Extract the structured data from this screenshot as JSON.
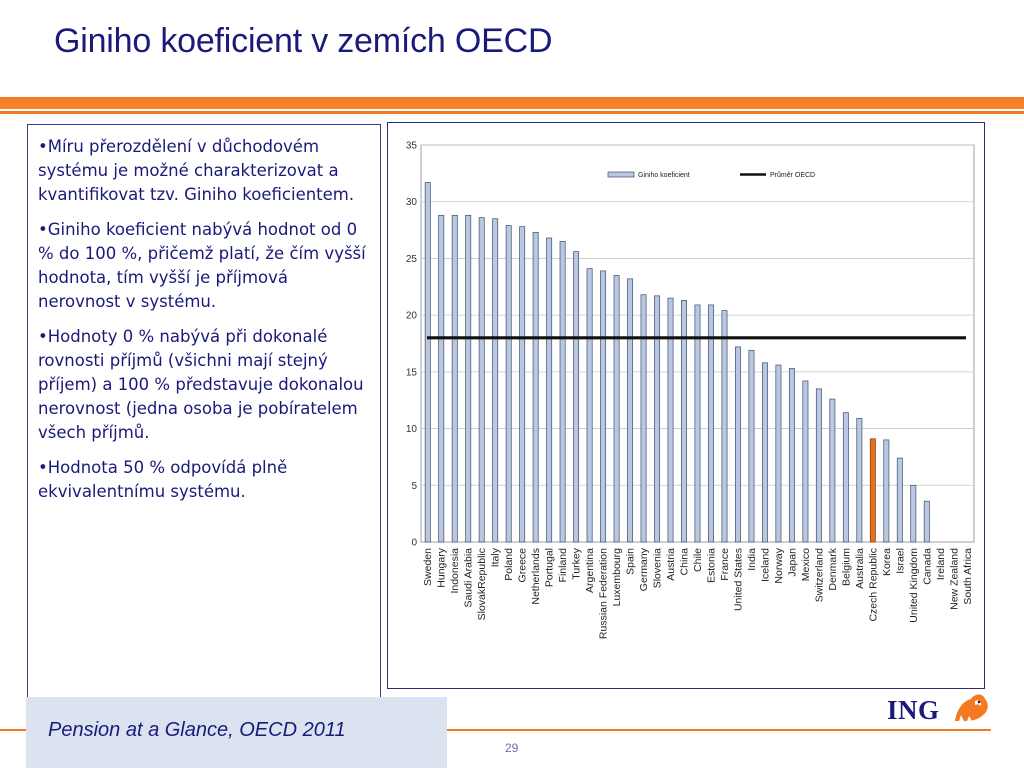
{
  "slide": {
    "title": "Giniho koeficient v zemích OECD",
    "source": "Pension at a Glance, OECD 2011",
    "page_number": "29",
    "logo_text": "ING",
    "bullets": [
      "Míru přerozdělení v důchodovém systému je možné charakterizovat a kvantifikovat tzv. Giniho koeficientem.",
      "Giniho koeficient nabývá hodnot od 0 % do 100 %, přičemž platí, že čím vyšší hodnota, tím vyšší je příjmová nerovnost v systému.",
      "Hodnoty 0 % nabývá při dokonalé rovnosti příjmů (všichni mají stejný příjem) a 100 % představuje dokonalou nerovnost (jedna osoba je pobíratelem všech příjmů.",
      "Hodnota 50 % odpovídá plně ekvivalentnímu systému."
    ]
  },
  "colors": {
    "title": "#1a1a7a",
    "accent": "#f47920",
    "bar_fill": "#b8c8e0",
    "bar_stroke": "#3f4d6e",
    "highlight_bar": "#e2711d",
    "average_line": "#111111"
  },
  "chart_data": {
    "type": "bar",
    "categories": [
      "Sweden",
      "Hungary",
      "Indonesia",
      "Saudi Arabia",
      "SlovakRepublic",
      "Italy",
      "Poland",
      "Greece",
      "Netherlands",
      "Portugal",
      "Finland",
      "Turkey",
      "Argentina",
      "Russian Federation",
      "Luxembourg",
      "Spain",
      "Germany",
      "Slovenia",
      "Austria",
      "China",
      "Chile",
      "Estonia",
      "France",
      "United States",
      "India",
      "Iceland",
      "Norway",
      "Japan",
      "Mexico",
      "Switzerland",
      "Denmark",
      "Belgium",
      "Australia",
      "Czech Republic",
      "Korea",
      "Israel",
      "United Kingdom",
      "Canada",
      "Ireland",
      "New Zealand",
      "South Africa"
    ],
    "series": [
      {
        "name": "Giniho koeficient",
        "values": [
          31.7,
          28.8,
          28.8,
          28.8,
          28.6,
          28.5,
          27.9,
          27.8,
          27.3,
          26.8,
          26.5,
          25.6,
          24.1,
          23.9,
          23.5,
          23.2,
          21.8,
          21.7,
          21.5,
          21.3,
          20.9,
          20.9,
          20.4,
          17.2,
          16.9,
          15.8,
          15.6,
          15.3,
          14.2,
          13.5,
          12.6,
          11.4,
          10.9,
          9.1,
          9.0,
          7.4,
          5.0,
          3.6,
          0.0,
          0.0,
          0.0
        ]
      },
      {
        "name": "Průměr OECD",
        "type": "line",
        "value": 18.0
      }
    ],
    "highlight": "Czech Republic",
    "ylim": [
      0,
      35
    ],
    "yticks": [
      0,
      5,
      10,
      15,
      20,
      25,
      30,
      35
    ],
    "grid": true,
    "legend_position": "top"
  }
}
